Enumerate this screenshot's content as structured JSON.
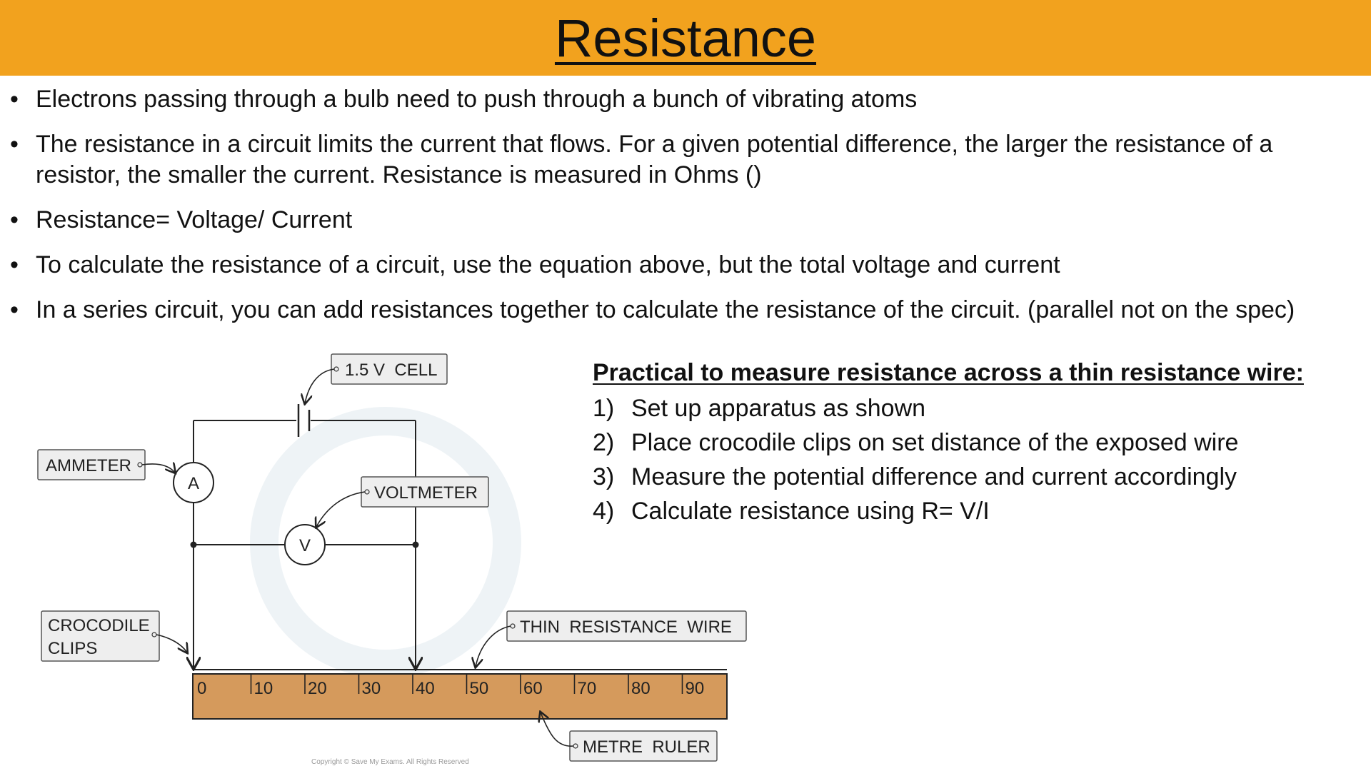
{
  "title": "Resistance",
  "bullets": [
    "Electrons passing through a bulb need to push through a bunch of vibrating atoms",
    "The resistance in a circuit limits the current that flows. For a given potential  difference, the larger the resistance of a resistor, the smaller the current. Resistance is measured in Ohms ()",
    "Resistance= Voltage/ Current",
    "To calculate the resistance of a circuit, use the equation above, but the total voltage and current",
    "In a series circuit, you can add resistances together to calculate the resistance of the circuit. (parallel not on the spec)"
  ],
  "practical": {
    "heading": "Practical to measure resistance across a thin resistance wire:",
    "steps": [
      {
        "num": "1)",
        "text": "Set up apparatus as shown"
      },
      {
        "num": "2)",
        "text": "Place crocodile clips on set distance of the exposed wire"
      },
      {
        "num": "3)",
        "text": "Measure the potential difference and current accordingly"
      },
      {
        "num": "4)",
        "text": "Calculate resistance using R= V/I"
      }
    ]
  },
  "diagram": {
    "labels": {
      "cell": "1.5 V  CELL",
      "ammeter": "AMMETER",
      "voltmeter": "VOLTMETER",
      "crocodile_line1": "CROCODILE",
      "crocodile_line2": "CLIPS",
      "wire": "THIN  RESISTANCE  WIRE",
      "ruler": "METRE  RULER"
    },
    "meter_symbols": {
      "ammeter": "A",
      "voltmeter": "V"
    },
    "ruler_ticks": [
      "0",
      "10",
      "20",
      "30",
      "40",
      "50",
      "60",
      "70",
      "80",
      "90"
    ],
    "colors": {
      "ruler": "#D59A5C",
      "title_bar": "#F2A21E"
    }
  },
  "copyright": "Copyright © Save My Exams. All Rights Reserved"
}
